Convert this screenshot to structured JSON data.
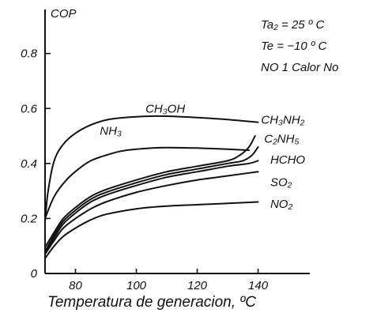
{
  "chart_data": {
    "type": "line",
    "title": "",
    "ylabel": "COP",
    "xlabel": "Temperatura de generacion, ºC",
    "xlim": [
      70,
      157
    ],
    "ylim": [
      0,
      0.96
    ],
    "x_ticks": [
      {
        "value": 80,
        "label": "80"
      },
      {
        "value": 100,
        "label": "100"
      },
      {
        "value": 120,
        "label": "120"
      },
      {
        "value": 140,
        "label": "140"
      }
    ],
    "y_ticks": [
      {
        "value": 0,
        "label": "0"
      },
      {
        "value": 0.2,
        "label": "0.2"
      },
      {
        "value": 0.4,
        "label": "0.4"
      },
      {
        "value": 0.6,
        "label": "0.6"
      },
      {
        "value": 0.8,
        "label": "0.8"
      }
    ],
    "conditions": [
      "Ta₂ = 25 º C",
      "Te = −10 º C",
      "NO 1  Calor No"
    ],
    "grid": false,
    "series": [
      {
        "name": "CH₃OH",
        "x": [
          70,
          71,
          73,
          76,
          80,
          85,
          90,
          95,
          100,
          105,
          110,
          120,
          130,
          140
        ],
        "y": [
          0.19,
          0.3,
          0.41,
          0.47,
          0.51,
          0.54,
          0.558,
          0.566,
          0.57,
          0.572,
          0.572,
          0.567,
          0.56,
          0.55
        ]
      },
      {
        "name": "NH₃",
        "x": [
          70,
          73,
          77,
          81,
          85,
          90,
          95,
          100,
          105,
          110,
          120,
          130,
          137
        ],
        "y": [
          0.2,
          0.28,
          0.34,
          0.38,
          0.41,
          0.43,
          0.445,
          0.452,
          0.456,
          0.458,
          0.456,
          0.452,
          0.448
        ]
      },
      {
        "name": "CH₃NH₂",
        "x": [
          70,
          73,
          76,
          80,
          85,
          90,
          100,
          110,
          120,
          130,
          134,
          137,
          139
        ],
        "y": [
          0.095,
          0.15,
          0.2,
          0.24,
          0.28,
          0.305,
          0.34,
          0.37,
          0.39,
          0.41,
          0.43,
          0.46,
          0.5
        ]
      },
      {
        "name": "C₂NH₅",
        "x": [
          70,
          73,
          76,
          80,
          85,
          90,
          100,
          110,
          120,
          130,
          135,
          138,
          140
        ],
        "y": [
          0.08,
          0.14,
          0.19,
          0.23,
          0.27,
          0.295,
          0.33,
          0.36,
          0.38,
          0.4,
          0.41,
          0.43,
          0.46
        ]
      },
      {
        "name": "HCHO",
        "x": [
          70,
          73,
          76,
          80,
          85,
          90,
          100,
          110,
          120,
          130,
          137,
          140
        ],
        "y": [
          0.075,
          0.13,
          0.18,
          0.22,
          0.26,
          0.285,
          0.32,
          0.35,
          0.37,
          0.39,
          0.4,
          0.41
        ]
      },
      {
        "name": "SO₂",
        "x": [
          70,
          73,
          76,
          80,
          85,
          90,
          100,
          110,
          120,
          130,
          140
        ],
        "y": [
          0.07,
          0.12,
          0.165,
          0.2,
          0.235,
          0.26,
          0.295,
          0.32,
          0.34,
          0.355,
          0.37
        ]
      },
      {
        "name": "NO₂",
        "x": [
          70,
          73,
          76,
          80,
          85,
          90,
          100,
          110,
          120,
          130,
          140
        ],
        "y": [
          0.055,
          0.1,
          0.135,
          0.165,
          0.195,
          0.215,
          0.235,
          0.245,
          0.25,
          0.255,
          0.26
        ]
      }
    ],
    "series_label_anchor": [
      {
        "x": 103,
        "y": 0.585
      },
      {
        "x": 88,
        "y": 0.505
      },
      {
        "x": 141,
        "y": 0.545
      },
      {
        "x": 142,
        "y": 0.475
      },
      {
        "x": 144,
        "y": 0.4
      },
      {
        "x": 144,
        "y": 0.318
      },
      {
        "x": 144,
        "y": 0.238
      }
    ]
  }
}
